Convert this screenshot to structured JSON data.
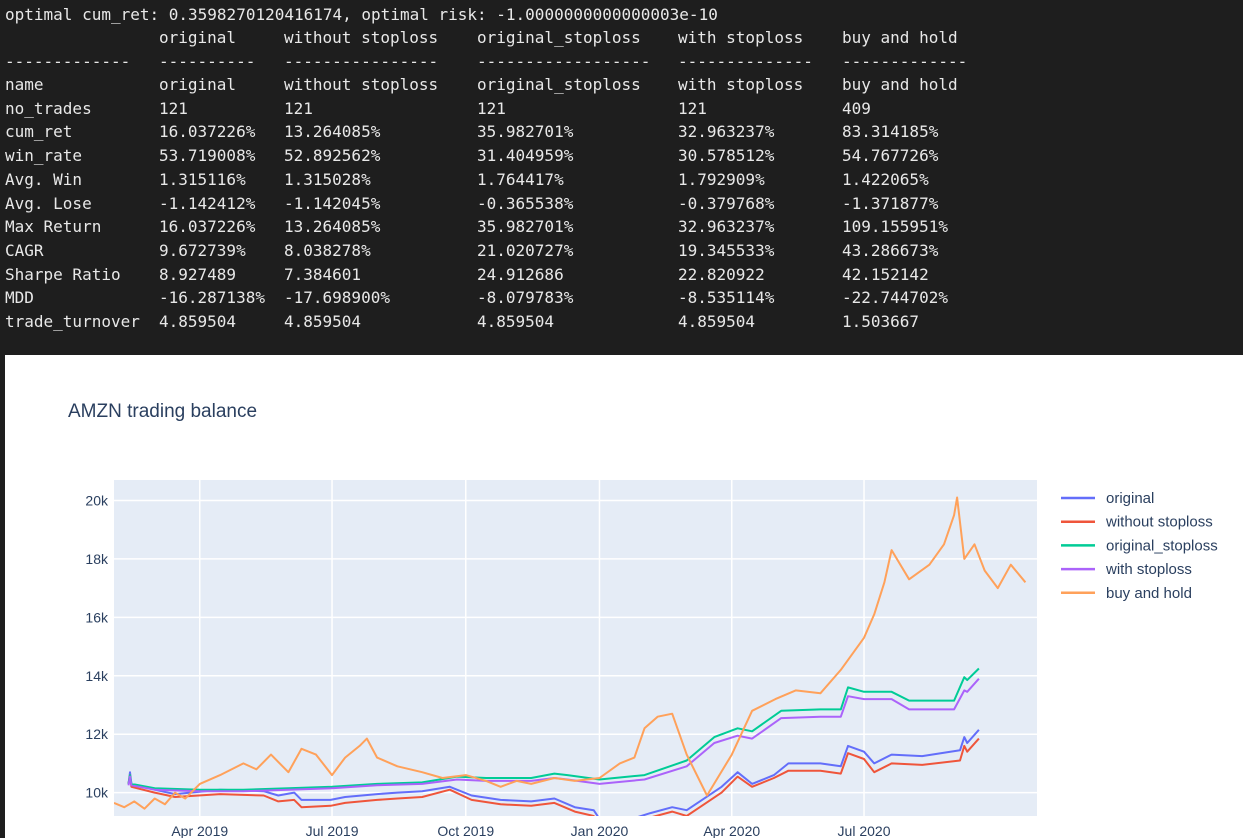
{
  "console": {
    "header_line": "optimal cum_ret: 0.3598270120416174, optimal risk: -1.0000000000000003e-10",
    "columns": [
      "original",
      "without stoploss",
      "original_stoploss",
      "with stoploss",
      "buy and hold"
    ],
    "separators": [
      "-------------",
      "----------",
      "----------------",
      "------------------",
      "--------------",
      "-------------"
    ],
    "rows": [
      {
        "label": "name",
        "values": [
          "original",
          "without stoploss",
          "original_stoploss",
          "with stoploss",
          "buy and hold"
        ]
      },
      {
        "label": "no_trades",
        "values": [
          "121",
          "121",
          "121",
          "121",
          "409"
        ]
      },
      {
        "label": "cum_ret",
        "values": [
          "16.037226%",
          "13.264085%",
          "35.982701%",
          "32.963237%",
          "83.314185%"
        ]
      },
      {
        "label": "win_rate",
        "values": [
          "53.719008%",
          "52.892562%",
          "31.404959%",
          "30.578512%",
          "54.767726%"
        ]
      },
      {
        "label": "Avg. Win",
        "values": [
          "1.315116%",
          "1.315028%",
          "1.764417%",
          "1.792909%",
          "1.422065%"
        ]
      },
      {
        "label": "Avg. Lose",
        "values": [
          "-1.142412%",
          "-1.142045%",
          "-0.365538%",
          "-0.379768%",
          "-1.371877%"
        ]
      },
      {
        "label": "Max Return",
        "values": [
          "16.037226%",
          "13.264085%",
          "35.982701%",
          "32.963237%",
          "109.155951%"
        ]
      },
      {
        "label": "CAGR",
        "values": [
          "9.672739%",
          "8.038278%",
          "21.020727%",
          "19.345533%",
          "43.286673%"
        ]
      },
      {
        "label": "Sharpe Ratio",
        "values": [
          "8.927489",
          "7.384601",
          "24.912686",
          "22.820922",
          "42.152142"
        ]
      },
      {
        "label": "MDD",
        "values": [
          "-16.287138%",
          "-17.698900%",
          "-8.079783%",
          "-8.535114%",
          "-22.744702%"
        ]
      },
      {
        "label": "trade_turnover",
        "values": [
          "4.859504",
          "4.859504",
          "4.859504",
          "4.859504",
          "1.503667"
        ]
      }
    ]
  },
  "chart_data": {
    "type": "line",
    "title": "AMZN trading balance",
    "xlabel": "",
    "ylabel": "",
    "x_range": [
      "2019-02-01",
      "2020-10-28"
    ],
    "ylim": [
      9200,
      20700
    ],
    "x_ticks": [
      {
        "date": "2019-04-01",
        "label": "Apr 2019"
      },
      {
        "date": "2019-07-01",
        "label": "Jul 2019"
      },
      {
        "date": "2019-10-01",
        "label": "Oct 2019"
      },
      {
        "date": "2020-01-01",
        "label": "Jan 2020"
      },
      {
        "date": "2020-04-01",
        "label": "Apr 2020"
      },
      {
        "date": "2020-07-01",
        "label": "Jul 2020"
      }
    ],
    "y_ticks": [
      {
        "value": 10000,
        "label": "10k"
      },
      {
        "value": 12000,
        "label": "12k"
      },
      {
        "value": 14000,
        "label": "14k"
      },
      {
        "value": 16000,
        "label": "16k"
      },
      {
        "value": 18000,
        "label": "18k"
      },
      {
        "value": 20000,
        "label": "20k"
      }
    ],
    "grid": true,
    "legend_position": "top-right",
    "background": "#e5ecf6",
    "series": [
      {
        "name": "original",
        "color": "#636efa",
        "points": [
          [
            "2019-02-11",
            10300
          ],
          [
            "2019-02-12",
            10700
          ],
          [
            "2019-02-13",
            10300
          ],
          [
            "2019-03-01",
            10100
          ],
          [
            "2019-03-15",
            9950
          ],
          [
            "2019-04-15",
            10100
          ],
          [
            "2019-05-15",
            10050
          ],
          [
            "2019-05-25",
            9900
          ],
          [
            "2019-06-05",
            10000
          ],
          [
            "2019-06-10",
            9750
          ],
          [
            "2019-06-30",
            9750
          ],
          [
            "2019-07-10",
            9850
          ],
          [
            "2019-08-01",
            9950
          ],
          [
            "2019-08-15",
            10000
          ],
          [
            "2019-09-01",
            10050
          ],
          [
            "2019-09-20",
            10200
          ],
          [
            "2019-10-05",
            9900
          ],
          [
            "2019-10-25",
            9750
          ],
          [
            "2019-11-15",
            9700
          ],
          [
            "2019-12-01",
            9800
          ],
          [
            "2019-12-15",
            9500
          ],
          [
            "2019-12-28",
            9400
          ],
          [
            "2020-01-01",
            9100
          ],
          [
            "2020-01-20",
            9050
          ],
          [
            "2020-02-05",
            9300
          ],
          [
            "2020-02-20",
            9500
          ],
          [
            "2020-03-01",
            9400
          ],
          [
            "2020-03-10",
            9700
          ],
          [
            "2020-03-25",
            10200
          ],
          [
            "2020-04-05",
            10700
          ],
          [
            "2020-04-15",
            10300
          ],
          [
            "2020-04-30",
            10600
          ],
          [
            "2020-05-10",
            11000
          ],
          [
            "2020-06-01",
            11000
          ],
          [
            "2020-06-15",
            10900
          ],
          [
            "2020-06-20",
            11600
          ],
          [
            "2020-07-01",
            11400
          ],
          [
            "2020-07-08",
            11000
          ],
          [
            "2020-07-20",
            11300
          ],
          [
            "2020-08-10",
            11250
          ],
          [
            "2020-09-05",
            11450
          ],
          [
            "2020-09-08",
            11900
          ],
          [
            "2020-09-10",
            11700
          ],
          [
            "2020-09-18",
            12150
          ]
        ]
      },
      {
        "name": "without stoploss",
        "color": "#ef553b",
        "points": [
          [
            "2019-02-11",
            10300
          ],
          [
            "2019-02-12",
            10600
          ],
          [
            "2019-02-13",
            10200
          ],
          [
            "2019-03-01",
            10000
          ],
          [
            "2019-03-15",
            9850
          ],
          [
            "2019-04-15",
            9950
          ],
          [
            "2019-05-15",
            9900
          ],
          [
            "2019-05-25",
            9700
          ],
          [
            "2019-06-05",
            9750
          ],
          [
            "2019-06-10",
            9500
          ],
          [
            "2019-06-30",
            9550
          ],
          [
            "2019-07-10",
            9650
          ],
          [
            "2019-08-01",
            9750
          ],
          [
            "2019-08-15",
            9800
          ],
          [
            "2019-09-01",
            9850
          ],
          [
            "2019-09-20",
            10100
          ],
          [
            "2019-10-05",
            9750
          ],
          [
            "2019-10-25",
            9600
          ],
          [
            "2019-11-15",
            9550
          ],
          [
            "2019-12-01",
            9650
          ],
          [
            "2019-12-15",
            9350
          ],
          [
            "2019-12-28",
            9200
          ],
          [
            "2020-01-01",
            8900
          ],
          [
            "2020-01-20",
            8950
          ],
          [
            "2020-02-05",
            9150
          ],
          [
            "2020-02-20",
            9350
          ],
          [
            "2020-03-01",
            9200
          ],
          [
            "2020-03-10",
            9500
          ],
          [
            "2020-03-25",
            10000
          ],
          [
            "2020-04-05",
            10550
          ],
          [
            "2020-04-15",
            10200
          ],
          [
            "2020-04-30",
            10500
          ],
          [
            "2020-05-10",
            10750
          ],
          [
            "2020-06-01",
            10750
          ],
          [
            "2020-06-15",
            10650
          ],
          [
            "2020-06-20",
            11350
          ],
          [
            "2020-07-01",
            11150
          ],
          [
            "2020-07-08",
            10700
          ],
          [
            "2020-07-20",
            11000
          ],
          [
            "2020-08-10",
            10950
          ],
          [
            "2020-09-05",
            11100
          ],
          [
            "2020-09-08",
            11600
          ],
          [
            "2020-09-10",
            11400
          ],
          [
            "2020-09-18",
            11850
          ]
        ]
      },
      {
        "name": "original_stoploss",
        "color": "#00cc96",
        "points": [
          [
            "2019-02-11",
            10300
          ],
          [
            "2019-02-12",
            10600
          ],
          [
            "2019-02-13",
            10300
          ],
          [
            "2019-03-01",
            10150
          ],
          [
            "2019-04-01",
            10100
          ],
          [
            "2019-05-01",
            10100
          ],
          [
            "2019-06-01",
            10150
          ],
          [
            "2019-07-01",
            10200
          ],
          [
            "2019-08-01",
            10300
          ],
          [
            "2019-09-01",
            10350
          ],
          [
            "2019-09-25",
            10550
          ],
          [
            "2019-10-15",
            10500
          ],
          [
            "2019-11-15",
            10500
          ],
          [
            "2019-12-01",
            10650
          ],
          [
            "2019-12-10",
            10600
          ],
          [
            "2020-01-01",
            10450
          ],
          [
            "2020-02-01",
            10600
          ],
          [
            "2020-03-01",
            11100
          ],
          [
            "2020-03-20",
            11900
          ],
          [
            "2020-04-05",
            12200
          ],
          [
            "2020-04-15",
            12100
          ],
          [
            "2020-05-05",
            12800
          ],
          [
            "2020-06-01",
            12850
          ],
          [
            "2020-06-15",
            12850
          ],
          [
            "2020-06-20",
            13600
          ],
          [
            "2020-07-01",
            13450
          ],
          [
            "2020-07-20",
            13450
          ],
          [
            "2020-08-01",
            13150
          ],
          [
            "2020-09-01",
            13150
          ],
          [
            "2020-09-08",
            13950
          ],
          [
            "2020-09-10",
            13850
          ],
          [
            "2020-09-18",
            14250
          ]
        ]
      },
      {
        "name": "with stoploss",
        "color": "#ab63fa",
        "points": [
          [
            "2019-02-11",
            10250
          ],
          [
            "2019-02-12",
            10550
          ],
          [
            "2019-02-13",
            10250
          ],
          [
            "2019-03-01",
            10100
          ],
          [
            "2019-04-01",
            10050
          ],
          [
            "2019-05-01",
            10050
          ],
          [
            "2019-06-01",
            10100
          ],
          [
            "2019-07-01",
            10150
          ],
          [
            "2019-08-01",
            10250
          ],
          [
            "2019-09-01",
            10300
          ],
          [
            "2019-09-25",
            10450
          ],
          [
            "2019-10-15",
            10400
          ],
          [
            "2019-11-15",
            10400
          ],
          [
            "2019-12-01",
            10500
          ],
          [
            "2019-12-10",
            10450
          ],
          [
            "2020-01-01",
            10300
          ],
          [
            "2020-02-01",
            10450
          ],
          [
            "2020-03-01",
            10900
          ],
          [
            "2020-03-20",
            11700
          ],
          [
            "2020-04-05",
            11950
          ],
          [
            "2020-04-15",
            11850
          ],
          [
            "2020-05-05",
            12550
          ],
          [
            "2020-06-01",
            12600
          ],
          [
            "2020-06-15",
            12600
          ],
          [
            "2020-06-20",
            13300
          ],
          [
            "2020-07-01",
            13200
          ],
          [
            "2020-07-20",
            13200
          ],
          [
            "2020-08-01",
            12850
          ],
          [
            "2020-09-01",
            12850
          ],
          [
            "2020-09-08",
            13500
          ],
          [
            "2020-09-10",
            13450
          ],
          [
            "2020-09-18",
            13900
          ]
        ]
      },
      {
        "name": "buy and hold",
        "color": "#ffa15a",
        "points": [
          [
            "2019-02-01",
            9650
          ],
          [
            "2019-02-08",
            9500
          ],
          [
            "2019-02-15",
            9700
          ],
          [
            "2019-02-22",
            9450
          ],
          [
            "2019-03-01",
            9800
          ],
          [
            "2019-03-08",
            9600
          ],
          [
            "2019-03-15",
            10000
          ],
          [
            "2019-03-22",
            9800
          ],
          [
            "2019-04-01",
            10300
          ],
          [
            "2019-04-15",
            10600
          ],
          [
            "2019-05-01",
            11000
          ],
          [
            "2019-05-10",
            10800
          ],
          [
            "2019-05-20",
            11300
          ],
          [
            "2019-06-01",
            10700
          ],
          [
            "2019-06-10",
            11500
          ],
          [
            "2019-06-20",
            11300
          ],
          [
            "2019-07-01",
            10600
          ],
          [
            "2019-07-10",
            11200
          ],
          [
            "2019-07-20",
            11600
          ],
          [
            "2019-07-25",
            11850
          ],
          [
            "2019-08-01",
            11200
          ],
          [
            "2019-08-15",
            10900
          ],
          [
            "2019-09-01",
            10700
          ],
          [
            "2019-09-15",
            10500
          ],
          [
            "2019-10-01",
            10600
          ],
          [
            "2019-10-15",
            10400
          ],
          [
            "2019-10-25",
            10200
          ],
          [
            "2019-11-05",
            10400
          ],
          [
            "2019-11-15",
            10300
          ],
          [
            "2019-12-01",
            10500
          ],
          [
            "2019-12-15",
            10400
          ],
          [
            "2020-01-01",
            10500
          ],
          [
            "2020-01-15",
            11000
          ],
          [
            "2020-01-25",
            11200
          ],
          [
            "2020-02-01",
            12200
          ],
          [
            "2020-02-10",
            12600
          ],
          [
            "2020-02-20",
            12700
          ],
          [
            "2020-03-01",
            11300
          ],
          [
            "2020-03-15",
            9900
          ],
          [
            "2020-04-01",
            11300
          ],
          [
            "2020-04-15",
            12800
          ],
          [
            "2020-05-01",
            13200
          ],
          [
            "2020-05-15",
            13500
          ],
          [
            "2020-06-01",
            13400
          ],
          [
            "2020-06-15",
            14200
          ],
          [
            "2020-07-01",
            15300
          ],
          [
            "2020-07-08",
            16100
          ],
          [
            "2020-07-15",
            17200
          ],
          [
            "2020-07-20",
            18300
          ],
          [
            "2020-08-01",
            17300
          ],
          [
            "2020-08-15",
            17800
          ],
          [
            "2020-08-25",
            18500
          ],
          [
            "2020-09-01",
            19500
          ],
          [
            "2020-09-03",
            20100
          ],
          [
            "2020-09-08",
            18000
          ],
          [
            "2020-09-15",
            18500
          ],
          [
            "2020-09-22",
            17600
          ],
          [
            "2020-10-01",
            17000
          ],
          [
            "2020-10-10",
            17800
          ],
          [
            "2020-10-20",
            17200
          ]
        ]
      }
    ]
  }
}
